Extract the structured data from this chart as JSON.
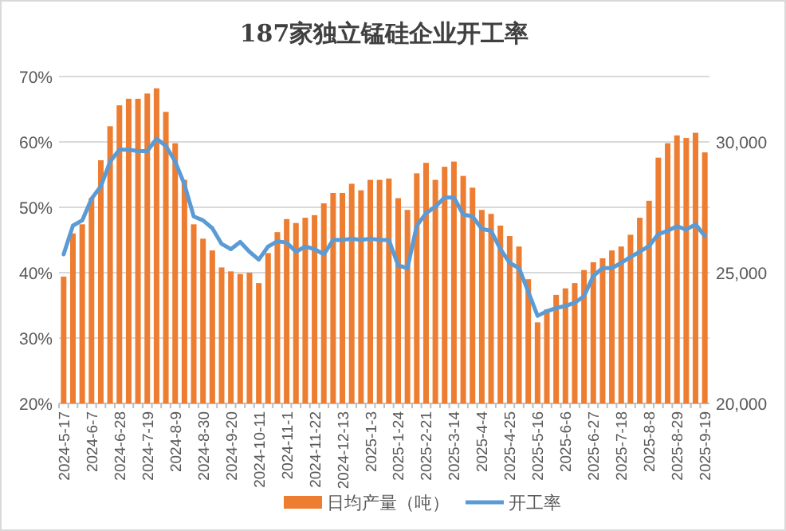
{
  "chart_data": {
    "type": "bar",
    "title": "187家独立锰硅企业开工率",
    "categories": [
      "2024-5-17",
      null,
      null,
      "2024-6-7",
      null,
      null,
      "2024-6-28",
      null,
      null,
      "2024-7-19",
      null,
      null,
      "2024-8-9",
      null,
      null,
      "2024-8-30",
      null,
      null,
      "2024-9-20",
      null,
      null,
      "2024-10-11",
      null,
      null,
      "2024-11-1",
      null,
      null,
      "2024-11-22",
      null,
      null,
      "2024-12-13",
      null,
      null,
      "2025-1-3",
      null,
      null,
      "2025-1-24",
      null,
      null,
      "2025-2-21",
      null,
      null,
      "2025-3-14",
      null,
      null,
      "2025-4-4",
      null,
      null,
      "2025-4-25",
      null,
      null,
      "2025-5-16",
      null,
      null,
      "2025-6-6",
      null,
      null,
      "2025-6-27",
      null,
      null,
      "2025-7-18",
      null,
      null,
      "2025-8-8",
      null,
      null,
      "2025-8-29",
      null,
      null,
      "2025-9-19"
    ],
    "series": [
      {
        "name": "日均产量（吨）",
        "axis": "y2",
        "color": "#ed7d31",
        "values": [
          24850,
          26500,
          26850,
          27850,
          29300,
          30600,
          31400,
          31650,
          31650,
          31850,
          32050,
          31150,
          29950,
          28550,
          26850,
          26300,
          25850,
          25200,
          25050,
          24950,
          25000,
          24600,
          25750,
          26550,
          27050,
          26900,
          27100,
          27200,
          27650,
          28050,
          28050,
          28400,
          28150,
          28550,
          28550,
          28600,
          27850,
          27400,
          28800,
          29200,
          28550,
          29050,
          29250,
          28700,
          28250,
          27400,
          27250,
          26800,
          26400,
          26000,
          24750,
          23100,
          23600,
          24150,
          24400,
          24600,
          25100,
          25400,
          25550,
          25850,
          26000,
          26450,
          27100,
          27750,
          29400,
          29950,
          30250,
          30150,
          30350,
          29600
        ]
      },
      {
        "name": "开工率",
        "type": "line",
        "color": "#5b9bd5",
        "values": [
          42.8,
          47.2,
          48.0,
          51.3,
          53.2,
          57.0,
          58.8,
          58.8,
          58.6,
          58.6,
          60.5,
          59.4,
          57.0,
          53.5,
          48.6,
          48.0,
          46.8,
          44.4,
          43.6,
          44.7,
          43.2,
          42.0,
          44.0,
          44.8,
          44.6,
          43.2,
          44.0,
          43.6,
          42.8,
          45.0,
          45.0,
          45.2,
          45.0,
          45.2,
          45.0,
          45.0,
          41.1,
          40.7,
          47.2,
          49.1,
          50.1,
          51.5,
          51.5,
          48.9,
          48.6,
          46.7,
          46.4,
          43.6,
          41.5,
          40.7,
          37.1,
          33.4,
          34.1,
          34.6,
          34.9,
          35.4,
          36.4,
          39.5,
          40.7,
          40.7,
          41.5,
          42.4,
          43.2,
          44.1,
          45.9,
          46.4,
          47.1,
          46.6,
          47.4,
          45.6
        ]
      }
    ],
    "ylim": [
      20,
      70
    ],
    "yticks": [
      {
        "value": 20,
        "label": "20%"
      },
      {
        "value": 30,
        "label": "30%"
      },
      {
        "value": 40,
        "label": "40%"
      },
      {
        "value": 50,
        "label": "50%"
      },
      {
        "value": 60,
        "label": "60%"
      },
      {
        "value": 70,
        "label": "70%"
      }
    ],
    "y2lim": [
      20000,
      32500
    ],
    "y2ticks": [
      {
        "value": 20000,
        "label": "20,000"
      },
      {
        "value": 25000,
        "label": "25,000"
      },
      {
        "value": 30000,
        "label": "30,000"
      }
    ],
    "grid": "y",
    "legend": "bottom"
  }
}
